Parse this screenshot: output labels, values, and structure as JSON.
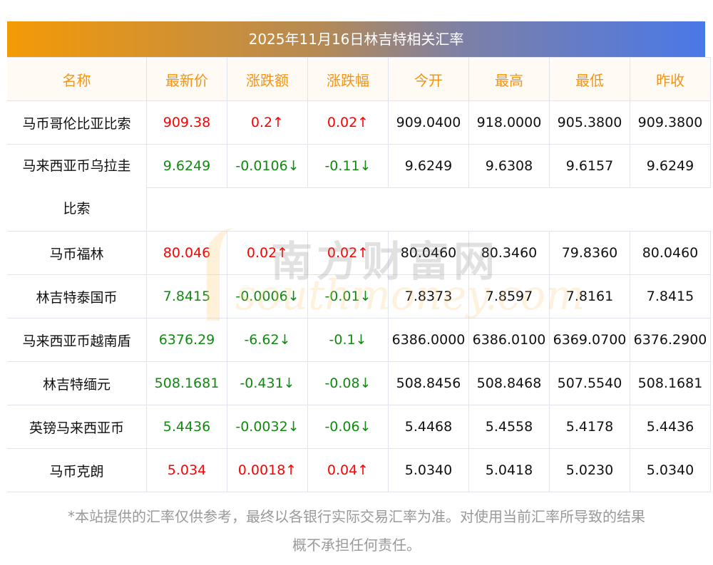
{
  "title": "2025年11月16日林吉特相关汇率",
  "headers": [
    "名称",
    "最新价",
    "涨跌额",
    "涨跌幅",
    "今开",
    "最高",
    "最低",
    "昨收"
  ],
  "rows": [
    {
      "name": "马币哥伦比亚比索",
      "latest": "909.38",
      "change": "0.2↑",
      "pct": "0.02↑",
      "open": "909.0400",
      "high": "918.0000",
      "low": "905.3800",
      "prev": "909.3800",
      "dir": "up"
    },
    {
      "name": "马来西亚币乌拉圭",
      "name2": "比索",
      "latest": "9.6249",
      "change": "-0.0106↓",
      "pct": "-0.11↓",
      "open": "9.6249",
      "high": "9.6308",
      "low": "9.6157",
      "prev": "9.6249",
      "dir": "down"
    },
    {
      "name": "马币福林",
      "latest": "80.046",
      "change": "0.02↑",
      "pct": "0.02↑",
      "open": "80.0460",
      "high": "80.3460",
      "low": "79.8360",
      "prev": "80.0460",
      "dir": "up"
    },
    {
      "name": "林吉特泰国币",
      "latest": "7.8415",
      "change": "-0.0006↓",
      "pct": "-0.01↓",
      "open": "7.8373",
      "high": "7.8597",
      "low": "7.8161",
      "prev": "7.8415",
      "dir": "down"
    },
    {
      "name": "马来西亚币越南盾",
      "latest": "6376.29",
      "change": "-6.62↓",
      "pct": "-0.1↓",
      "open": "6386.0000",
      "high": "6386.0100",
      "low": "6369.0700",
      "prev": "6376.2900",
      "dir": "down"
    },
    {
      "name": "林吉特缅元",
      "latest": "508.1681",
      "change": "-0.431↓",
      "pct": "-0.08↓",
      "open": "508.8456",
      "high": "508.8468",
      "low": "507.5540",
      "prev": "508.1681",
      "dir": "down"
    },
    {
      "name": "英镑马来西亚币",
      "latest": "5.4436",
      "change": "-0.0032↓",
      "pct": "-0.06↓",
      "open": "5.4468",
      "high": "5.4558",
      "low": "5.4178",
      "prev": "5.4436",
      "dir": "down"
    },
    {
      "name": "马币克朗",
      "latest": "5.034",
      "change": "0.0018↑",
      "pct": "0.04↑",
      "open": "5.0340",
      "high": "5.0418",
      "low": "5.0230",
      "prev": "5.0340",
      "dir": "up"
    }
  ],
  "watermark": {
    "cn": "南方财富网",
    "en": "southmoney.com"
  },
  "footer": {
    "line1": "*本站提供的汇率仅供参考，最终以各银行实际交易汇率为准。对使用当前汇率所导致的结果",
    "line2": "概不承担任何责任。"
  },
  "colors": {
    "up": "#ff0000",
    "down": "#118a11",
    "header_text": "#f7930e",
    "gradient_start": "#f49a06",
    "gradient_end": "#4a78e8"
  }
}
